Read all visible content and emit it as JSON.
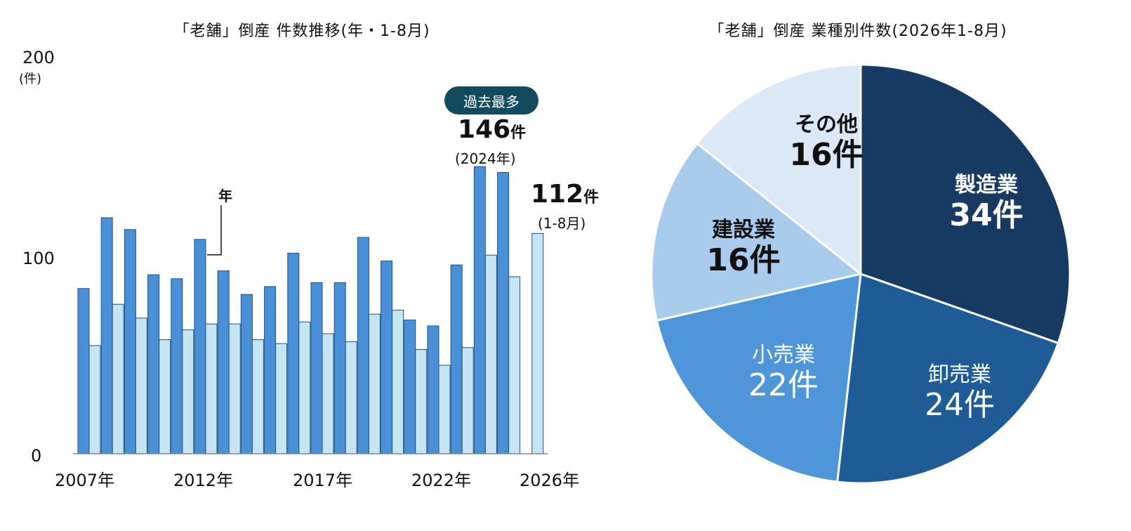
{
  "colors": {
    "annual": "#4a90d9",
    "jan_aug": "#c6e5f4",
    "bar_stroke": "#1f4f7a",
    "badge": "#124a5e",
    "pie": [
      "#173a63",
      "#1f5b96",
      "#4f95da",
      "#a9cbec",
      "#dbe8f6"
    ]
  },
  "chart_data": [
    {
      "type": "bar",
      "title": "「老舗」倒産 件数推移(年・1-8月)",
      "ylabel": "(件)",
      "ylim": [
        0,
        200
      ],
      "yticks": [
        "0",
        "100",
        "200"
      ],
      "x_tick_labels": [
        "2007年",
        "2012年",
        "2017年",
        "2022年",
        "2026年"
      ],
      "series_label": "年",
      "categories": [
        "2007",
        "2008",
        "2009",
        "2010",
        "2011",
        "2012",
        "2013",
        "2014",
        "2015",
        "2016",
        "2017",
        "2018",
        "2019",
        "2020",
        "2021",
        "2022",
        "2023",
        "2024",
        "2025",
        "2026"
      ],
      "series": [
        {
          "key": "annual",
          "values": [
            84,
            120,
            114,
            91,
            89,
            109,
            93,
            81,
            85,
            102,
            87,
            87,
            110,
            98,
            68,
            65,
            96,
            146,
            143,
            null
          ]
        },
        {
          "key": "jan_aug",
          "values": [
            55,
            76,
            69,
            58,
            63,
            66,
            66,
            58,
            56,
            67,
            61,
            57,
            71,
            73,
            53,
            45,
            54,
            101,
            90,
            112
          ]
        }
      ],
      "annotations": {
        "badge": "過去最多",
        "max_value": "146",
        "max_unit": "件",
        "max_year": "(2024年)",
        "latest_value": "112",
        "latest_unit": "件",
        "latest_period": "(1-8月)"
      }
    },
    {
      "type": "pie",
      "title": "「老舗」倒産  業種別件数(2026年1-8月)",
      "slices": [
        {
          "name": "製造業",
          "label": "34件",
          "value": 34
        },
        {
          "name": "卸売業",
          "label": "24件",
          "value": 24
        },
        {
          "name": "小売業",
          "label": "22件",
          "value": 22
        },
        {
          "name": "建設業",
          "label": "16件",
          "value": 16
        },
        {
          "name": "その他",
          "label": "16件",
          "value": 16
        }
      ]
    }
  ]
}
